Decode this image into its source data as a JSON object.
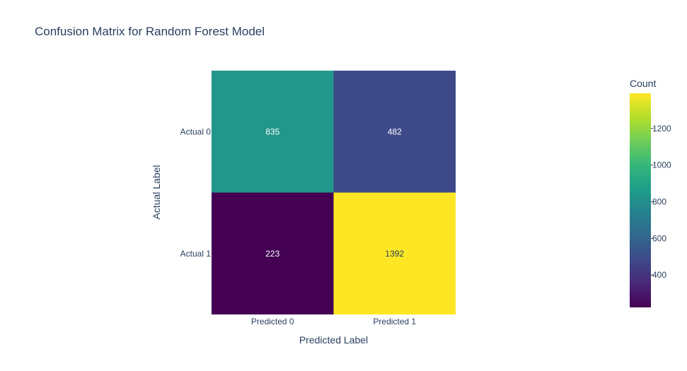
{
  "chart_data": {
    "type": "heatmap",
    "title": "Confusion Matrix for Random Forest Model",
    "xlabel": "Predicted Label",
    "ylabel": "Actual Label",
    "x_categories": [
      "Predicted 0",
      "Predicted 1"
    ],
    "y_categories": [
      "Actual 0",
      "Actual 1"
    ],
    "z": [
      [
        835,
        482
      ],
      [
        223,
        1392
      ]
    ],
    "text": [
      [
        "835",
        "482"
      ],
      [
        "223",
        "1392"
      ]
    ],
    "colorscale": "Viridis",
    "zmin": 223,
    "zmax": 1392,
    "colorbar": {
      "title": "Count",
      "ticks": [
        400,
        600,
        800,
        1000,
        1200
      ]
    },
    "colors": {
      "text_dark_bg": "#ffffff",
      "text_light_bg": "#2a3f5f",
      "axis_text": "#2a3f5f"
    }
  }
}
